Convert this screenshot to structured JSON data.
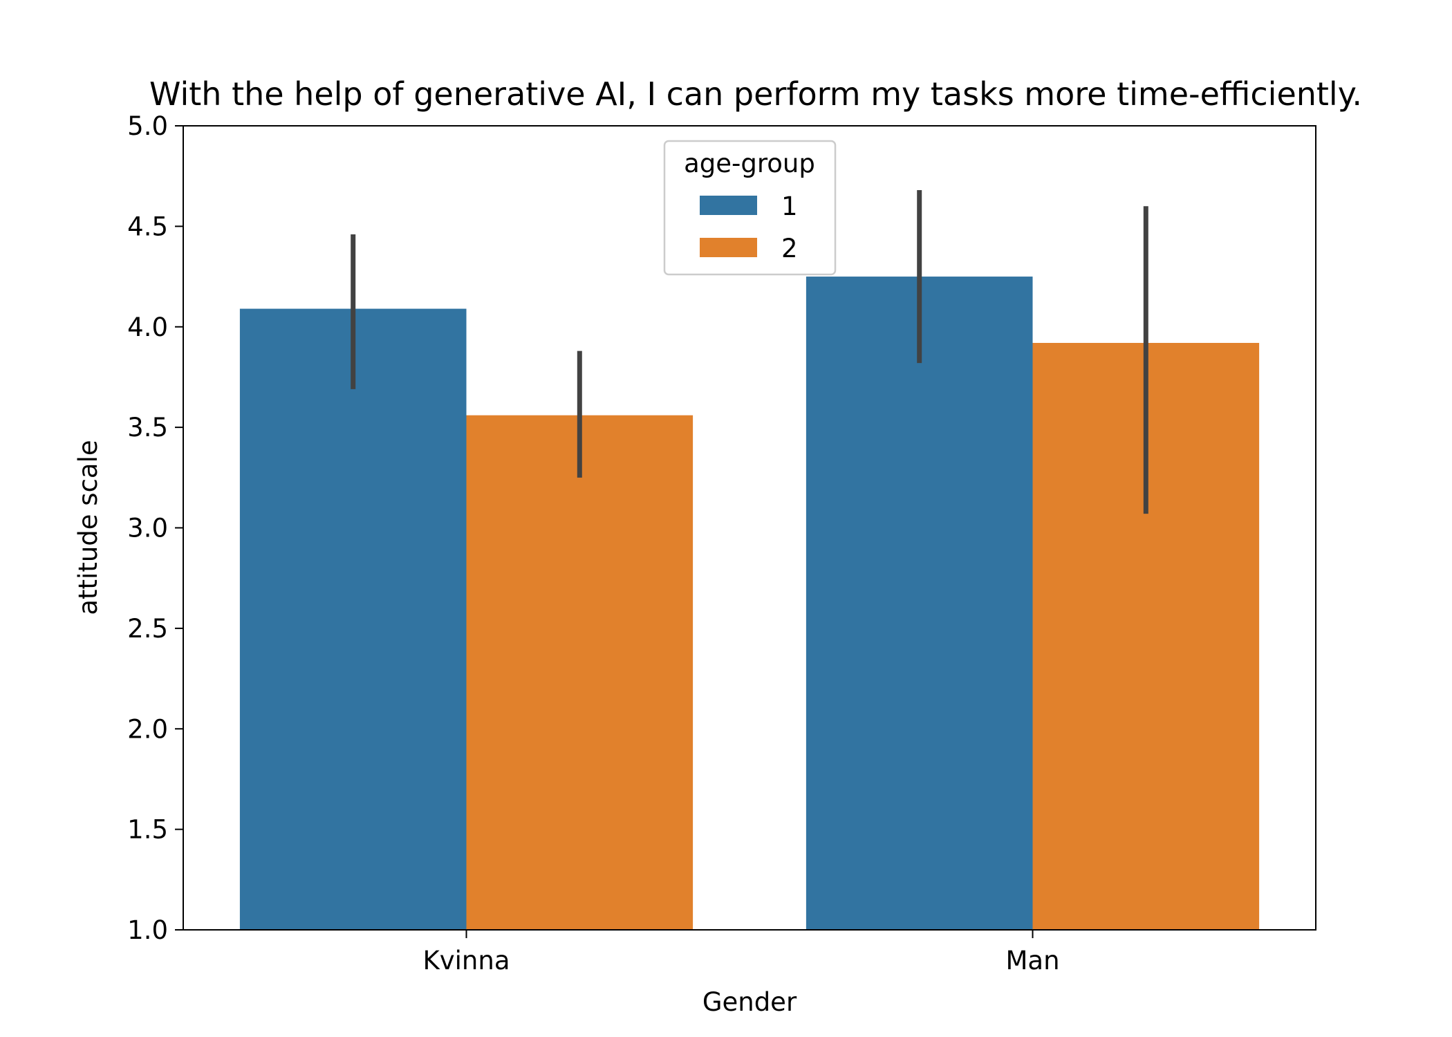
{
  "chart_data": {
    "type": "bar",
    "title": "With the help of generative AI, I can perform my tasks more time-efficiently.",
    "xlabel": "Gender",
    "ylabel": "attitude scale",
    "categories": [
      "Kvinna",
      "Man"
    ],
    "ylim": [
      1.0,
      5.0
    ],
    "yticks": [
      "1.0",
      "1.5",
      "2.0",
      "2.5",
      "3.0",
      "3.5",
      "4.0",
      "4.5",
      "5.0"
    ],
    "grid": false,
    "legend": {
      "title": "age-group",
      "placement": "upper-center"
    },
    "series": [
      {
        "name": "1",
        "color": "#3274a1",
        "values": [
          4.09,
          4.25
        ],
        "error_low": [
          3.69,
          3.82
        ],
        "error_high": [
          4.46,
          4.68
        ]
      },
      {
        "name": "2",
        "color": "#e1812c",
        "values": [
          3.56,
          3.92
        ],
        "error_low": [
          3.25,
          3.07
        ],
        "error_high": [
          3.88,
          4.6
        ]
      }
    ],
    "error_bar_color": "#424242"
  }
}
